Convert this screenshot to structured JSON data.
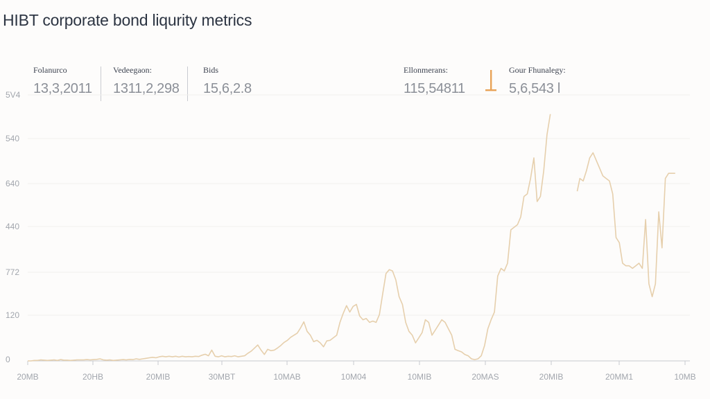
{
  "title": "HIBT corporate bond liqurity metrics",
  "metrics": [
    {
      "label": "Folanurco",
      "value": "13,3,2011"
    },
    {
      "label": "Vedeegaon:",
      "value": "1311,2,298"
    },
    {
      "label": "Bids",
      "value": "15,6,2.8"
    },
    {
      "label": "Ellonmerans:",
      "value": "115,54811"
    },
    {
      "label": "Gour Fhunalegy:",
      "value": "5,6,543 l"
    }
  ],
  "icons": {
    "marker": "orange-marker-icon"
  },
  "colors": {
    "line": "#e6cfac",
    "marker": "#e8a256",
    "text": "#2c3442",
    "muted": "#a2a6ad"
  },
  "chart_data": {
    "type": "line",
    "title": "HIBT corporate bond liqurity metrics",
    "xlabel": "",
    "ylabel": "",
    "y_tick_labels": [
      "5V4",
      "540",
      "640",
      "440",
      "772",
      "120",
      "0"
    ],
    "x_tick_labels": [
      "20MB",
      "20HB",
      "20MIB",
      "30MBT",
      "10MAB",
      "10M04",
      "10MIB",
      "20MAS",
      "20MIB",
      "20MM1",
      "10MB"
    ],
    "ylim": [
      0,
      1000
    ],
    "grid": true,
    "series": [
      {
        "segments": [
          [
            [
              0,
              0
            ],
            [
              5,
              0
            ],
            [
              10,
              2
            ],
            [
              15,
              2
            ],
            [
              20,
              4
            ],
            [
              25,
              3
            ],
            [
              30,
              2
            ],
            [
              35,
              3
            ],
            [
              40,
              4
            ],
            [
              45,
              2
            ],
            [
              50,
              5
            ],
            [
              55,
              3
            ],
            [
              60,
              3
            ],
            [
              65,
              2
            ],
            [
              70,
              3
            ],
            [
              75,
              4
            ],
            [
              80,
              4
            ],
            [
              85,
              4
            ],
            [
              90,
              5
            ],
            [
              95,
              4
            ],
            [
              100,
              5
            ],
            [
              105,
              6
            ],
            [
              110,
              8
            ],
            [
              115,
              4
            ],
            [
              120,
              3
            ],
            [
              125,
              4
            ],
            [
              130,
              2
            ],
            [
              135,
              3
            ],
            [
              140,
              4
            ],
            [
              145,
              5
            ],
            [
              150,
              4
            ],
            [
              155,
              6
            ],
            [
              160,
              5
            ],
            [
              165,
              8
            ],
            [
              170,
              6
            ],
            [
              175,
              8
            ],
            [
              180,
              10
            ],
            [
              185,
              12
            ],
            [
              190,
              14
            ],
            [
              195,
              12
            ],
            [
              200,
              16
            ],
            [
              205,
              18
            ],
            [
              210,
              16
            ],
            [
              215,
              18
            ],
            [
              220,
              16
            ],
            [
              225,
              18
            ],
            [
              230,
              15
            ],
            [
              235,
              18
            ],
            [
              240,
              16
            ],
            [
              245,
              17
            ],
            [
              250,
              16
            ],
            [
              255,
              18
            ],
            [
              260,
              17
            ],
            [
              265,
              22
            ],
            [
              270,
              26
            ],
            [
              275,
              20
            ],
            [
              280,
              42
            ],
            [
              285,
              18
            ],
            [
              290,
              16
            ],
            [
              295,
              20
            ],
            [
              300,
              16
            ],
            [
              305,
              18
            ],
            [
              310,
              17
            ],
            [
              315,
              20
            ],
            [
              320,
              16
            ],
            [
              325,
              18
            ],
            [
              330,
              20
            ],
            [
              335,
              30
            ],
            [
              340,
              38
            ],
            [
              345,
              50
            ],
            [
              350,
              62
            ],
            [
              355,
              42
            ],
            [
              360,
              25
            ],
            [
              365,
              45
            ],
            [
              370,
              40
            ],
            [
              375,
              42
            ],
            [
              380,
              50
            ],
            [
              385,
              60
            ],
            [
              390,
              72
            ],
            [
              395,
              80
            ],
            [
              400,
              92
            ],
            [
              405,
              100
            ],
            [
              410,
              108
            ],
            [
              415,
              128
            ],
            [
              420,
              152
            ],
            [
              425,
              115
            ],
            [
              430,
              100
            ],
            [
              435,
              75
            ],
            [
              440,
              80
            ],
            [
              445,
              70
            ],
            [
              450,
              55
            ],
            [
              455,
              78
            ],
            [
              460,
              80
            ],
            [
              465,
              90
            ],
            [
              470,
              100
            ],
            [
              475,
              150
            ],
            [
              480,
              185
            ],
            [
              485,
              215
            ],
            [
              490,
              190
            ],
            [
              495,
              212
            ],
            [
              500,
              220
            ],
            [
              505,
              175
            ],
            [
              510,
              160
            ],
            [
              515,
              165
            ],
            [
              520,
              150
            ],
            [
              525,
              155
            ],
            [
              530,
              150
            ],
            [
              535,
              180
            ],
            [
              540,
              260
            ],
            [
              545,
              340
            ],
            [
              550,
              355
            ],
            [
              555,
              350
            ],
            [
              560,
              315
            ],
            [
              565,
              250
            ],
            [
              570,
              220
            ],
            [
              575,
              150
            ],
            [
              580,
              115
            ],
            [
              585,
              100
            ],
            [
              590,
              70
            ],
            [
              595,
              90
            ],
            [
              600,
              110
            ],
            [
              605,
              160
            ],
            [
              610,
              150
            ],
            [
              615,
              100
            ],
            [
              620,
              120
            ],
            [
              625,
              140
            ],
            [
              630,
              160
            ],
            [
              635,
              150
            ],
            [
              640,
              125
            ],
            [
              645,
              100
            ],
            [
              650,
              45
            ],
            [
              655,
              40
            ],
            [
              660,
              35
            ],
            [
              665,
              25
            ],
            [
              670,
              20
            ],
            [
              675,
              8
            ],
            [
              680,
              5
            ],
            [
              685,
              8
            ],
            [
              690,
              20
            ],
            [
              695,
              60
            ],
            [
              700,
              125
            ],
            [
              705,
              160
            ],
            [
              710,
              190
            ],
            [
              715,
              330
            ],
            [
              720,
              360
            ],
            [
              725,
              350
            ],
            [
              730,
              380
            ],
            [
              735,
              510
            ],
            [
              740,
              520
            ],
            [
              745,
              530
            ],
            [
              750,
              560
            ],
            [
              755,
              640
            ],
            [
              760,
              650
            ],
            [
              765,
              710
            ],
            [
              770,
              790
            ],
            [
              775,
              620
            ],
            [
              780,
              640
            ],
            [
              785,
              740
            ],
            [
              790,
              880
            ],
            [
              795,
              960
            ]
          ],
          [
            [
              836,
              660
            ],
            [
              840,
              710
            ],
            [
              845,
              700
            ],
            [
              850,
              740
            ],
            [
              855,
              790
            ],
            [
              860,
              810
            ],
            [
              865,
              780
            ],
            [
              870,
              750
            ],
            [
              875,
              720
            ],
            [
              880,
              710
            ],
            [
              885,
              700
            ],
            [
              890,
              650
            ],
            [
              895,
              480
            ],
            [
              900,
              460
            ],
            [
              905,
              380
            ],
            [
              910,
              370
            ],
            [
              915,
              370
            ],
            [
              920,
              360
            ],
            [
              925,
              370
            ],
            [
              930,
              380
            ],
            [
              935,
              360
            ],
            [
              940,
              550
            ],
            [
              945,
              300
            ],
            [
              950,
              250
            ],
            [
              955,
              300
            ],
            [
              960,
              580
            ],
            [
              965,
              440
            ],
            [
              970,
              710
            ],
            [
              975,
              730
            ],
            [
              980,
              730
            ],
            [
              985,
              730
            ]
          ]
        ]
      }
    ]
  }
}
